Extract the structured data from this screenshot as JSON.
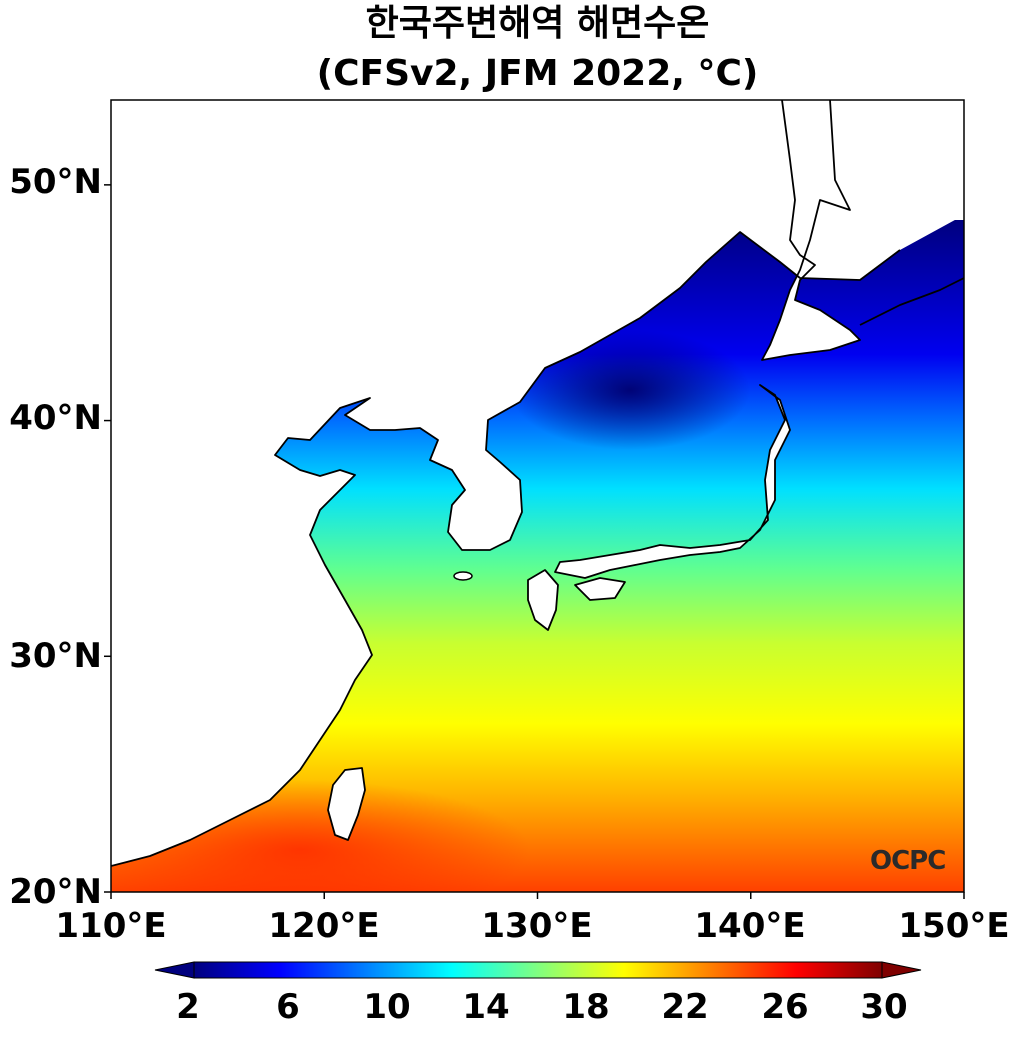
{
  "title_line1": "한국주변해역 해면수온",
  "title_line2": "(CFSv2, JFM 2022, °C)",
  "map": {
    "lon_range": [
      110,
      150
    ],
    "lat_range": [
      20,
      53.6
    ],
    "lat_ticks": [
      {
        "value": 50,
        "label": "50°N"
      },
      {
        "value": 40,
        "label": "40°N"
      },
      {
        "value": 30,
        "label": "30°N"
      },
      {
        "value": 20,
        "label": "20°N"
      }
    ],
    "lon_ticks": [
      {
        "value": 110,
        "label": "110°E"
      },
      {
        "value": 120,
        "label": "120°E"
      },
      {
        "value": 130,
        "label": "130°E"
      },
      {
        "value": 140,
        "label": "140°E"
      },
      {
        "value": 150,
        "label": "150°E"
      }
    ]
  },
  "colorbar": {
    "min": 1,
    "max": 31,
    "ticks": [
      "2",
      "6",
      "10",
      "14",
      "18",
      "22",
      "26",
      "30"
    ],
    "tick_values": [
      2,
      6,
      10,
      14,
      18,
      22,
      26,
      30
    ],
    "colors": [
      "#00007f",
      "#0000ff",
      "#0080ff",
      "#00ffff",
      "#80ff80",
      "#ffff00",
      "#ff8000",
      "#ff0000",
      "#7f0000"
    ]
  },
  "watermark": "OCPC"
}
